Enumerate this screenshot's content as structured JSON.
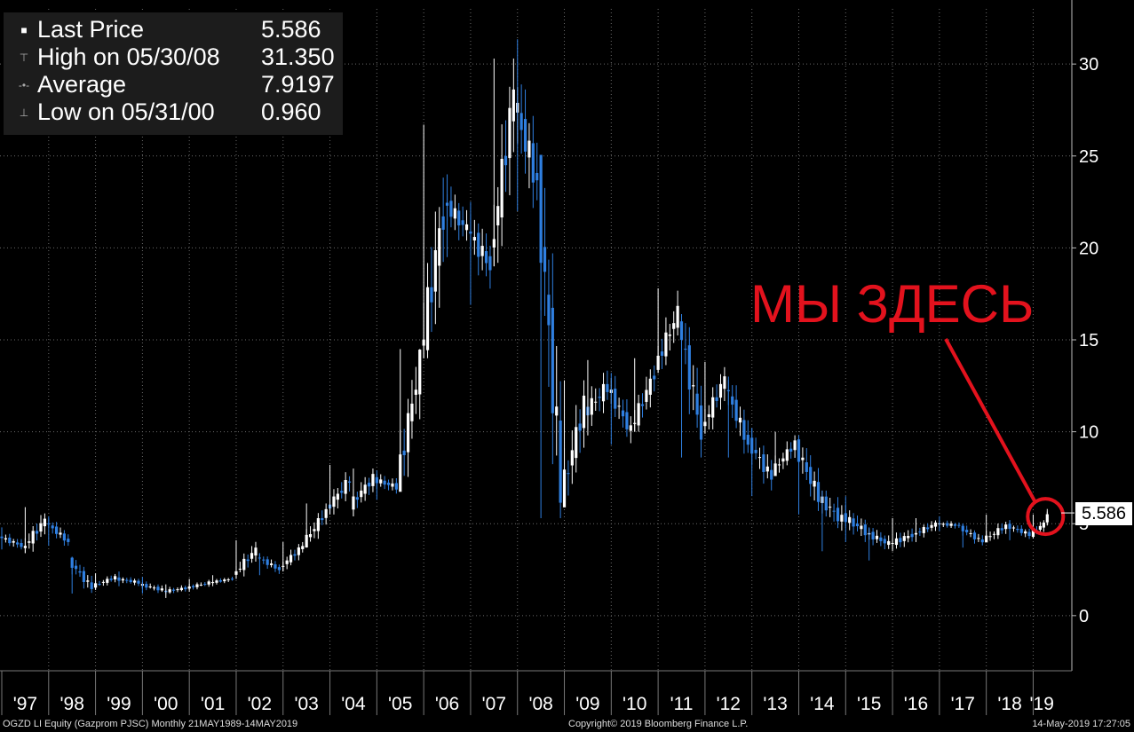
{
  "legend": {
    "last_label": "Last Price",
    "last_value": "5.586",
    "high_label": "High on 05/30/08",
    "high_value": "31.350",
    "avg_label": "Average",
    "avg_value": "7.9197",
    "low_label": "Low on 05/31/00",
    "low_value": "0.960"
  },
  "annotation": {
    "text": "МЫ ЗДЕСЬ",
    "color": "#e3121d"
  },
  "price_tag": "5.586",
  "footer": {
    "left": "OGZD LI Equity  (Gazprom PJSC)   Monthly 21MAY1989-14MAY2019",
    "center": "Copyright© 2019 Bloomberg Finance L.P.",
    "right": "14-May-2019 17:27:05"
  },
  "colors": {
    "up": "#ffffff",
    "down": "#2f7fe0",
    "grid": "#6a6a6a",
    "background": "#000000"
  },
  "chart_data": {
    "type": "candlestick",
    "period": "monthly",
    "ylim": [
      -3,
      33
    ],
    "yticks": [
      0,
      5,
      10,
      15,
      20,
      25,
      30
    ],
    "grid": true,
    "legend_position": "top-left",
    "x_tick_labels": [
      "'97",
      "'98",
      "'99",
      "'00",
      "'01",
      "'02",
      "'03",
      "'04",
      "'05",
      "'06",
      "'07",
      "'08",
      "'09",
      "'10",
      "'11",
      "'12",
      "'13",
      "'14",
      "'15",
      "'16",
      "'17",
      "'18",
      "'19"
    ],
    "x_start_year": 1997,
    "x_end_year": 2019.37,
    "series": [
      {
        "values": [
          {
            "t": 1997.0,
            "o": 4.3,
            "h": 4.8,
            "l": 3.6,
            "c": 3.8
          },
          {
            "t": 1997.5,
            "o": 3.6,
            "h": 5.9,
            "l": 3.4,
            "c": 5.2
          },
          {
            "t": 1998.0,
            "o": 5.1,
            "h": 5.4,
            "l": 3.8,
            "c": 4.0
          },
          {
            "t": 1998.5,
            "o": 3.0,
            "h": 3.2,
            "l": 1.2,
            "c": 1.5
          },
          {
            "t": 1999.0,
            "o": 1.6,
            "h": 2.3,
            "l": 1.4,
            "c": 2.1
          },
          {
            "t": 1999.5,
            "o": 2.0,
            "h": 2.4,
            "l": 1.6,
            "c": 1.8
          },
          {
            "t": 2000.0,
            "o": 1.7,
            "h": 2.1,
            "l": 1.2,
            "c": 1.4
          },
          {
            "t": 2000.5,
            "o": 1.3,
            "h": 1.7,
            "l": 0.96,
            "c": 1.5
          },
          {
            "t": 2001.0,
            "o": 1.5,
            "h": 2.0,
            "l": 1.3,
            "c": 1.8
          },
          {
            "t": 2001.5,
            "o": 1.8,
            "h": 2.2,
            "l": 1.6,
            "c": 2.0
          },
          {
            "t": 2002.0,
            "o": 2.2,
            "h": 4.1,
            "l": 2.0,
            "c": 3.6
          },
          {
            "t": 2002.5,
            "o": 3.2,
            "h": 3.4,
            "l": 2.2,
            "c": 2.5
          },
          {
            "t": 2003.0,
            "o": 2.6,
            "h": 4.0,
            "l": 2.4,
            "c": 3.8
          },
          {
            "t": 2003.5,
            "o": 3.9,
            "h": 6.1,
            "l": 3.7,
            "c": 5.7
          },
          {
            "t": 2004.0,
            "o": 5.8,
            "h": 8.2,
            "l": 5.5,
            "c": 7.4
          },
          {
            "t": 2004.5,
            "o": 6.0,
            "h": 8.0,
            "l": 5.4,
            "c": 7.5
          },
          {
            "t": 2005.0,
            "o": 7.4,
            "h": 7.9,
            "l": 6.3,
            "c": 7.0
          },
          {
            "t": 2005.5,
            "o": 7.2,
            "h": 14.5,
            "l": 7.0,
            "c": 13.8
          },
          {
            "t": 2006.0,
            "o": 14.2,
            "h": 26.7,
            "l": 14.0,
            "c": 22.0
          },
          {
            "t": 2006.5,
            "o": 22.5,
            "h": 24.0,
            "l": 19.5,
            "c": 21.0
          },
          {
            "t": 2007.0,
            "o": 21.0,
            "h": 22.5,
            "l": 16.9,
            "c": 19.0
          },
          {
            "t": 2007.5,
            "o": 19.5,
            "h": 30.3,
            "l": 19.0,
            "c": 28.5
          },
          {
            "t": 2008.0,
            "o": 28.0,
            "h": 31.35,
            "l": 22.0,
            "c": 23.5
          },
          {
            "t": 2008.5,
            "o": 23.5,
            "h": 24.0,
            "l": 5.3,
            "c": 7.0
          },
          {
            "t": 2009.0,
            "o": 6.5,
            "h": 12.8,
            "l": 6.0,
            "c": 11.5
          },
          {
            "t": 2009.5,
            "o": 11.0,
            "h": 13.9,
            "l": 9.8,
            "c": 12.5
          },
          {
            "t": 2010.0,
            "o": 12.4,
            "h": 13.2,
            "l": 9.3,
            "c": 10.0
          },
          {
            "t": 2010.5,
            "o": 10.2,
            "h": 14.0,
            "l": 10.0,
            "c": 13.2
          },
          {
            "t": 2011.0,
            "o": 13.5,
            "h": 17.8,
            "l": 13.2,
            "c": 16.5
          },
          {
            "t": 2011.5,
            "o": 16.0,
            "h": 16.4,
            "l": 8.6,
            "c": 10.0
          },
          {
            "t": 2012.0,
            "o": 10.2,
            "h": 13.8,
            "l": 9.9,
            "c": 12.9
          },
          {
            "t": 2012.5,
            "o": 12.5,
            "h": 13.0,
            "l": 8.6,
            "c": 9.3
          },
          {
            "t": 2013.0,
            "o": 9.4,
            "h": 10.2,
            "l": 6.5,
            "c": 7.5
          },
          {
            "t": 2013.5,
            "o": 7.8,
            "h": 10.0,
            "l": 7.6,
            "c": 9.4
          },
          {
            "t": 2014.0,
            "o": 9.2,
            "h": 9.8,
            "l": 5.5,
            "c": 6.5
          },
          {
            "t": 2014.5,
            "o": 6.4,
            "h": 6.8,
            "l": 3.5,
            "c": 5.2
          },
          {
            "t": 2015.0,
            "o": 5.4,
            "h": 6.5,
            "l": 4.0,
            "c": 4.6
          },
          {
            "t": 2015.5,
            "o": 4.5,
            "h": 4.8,
            "l": 3.0,
            "c": 3.9
          },
          {
            "t": 2016.0,
            "o": 3.9,
            "h": 5.3,
            "l": 3.5,
            "c": 4.4
          },
          {
            "t": 2016.5,
            "o": 4.4,
            "h": 5.3,
            "l": 4.0,
            "c": 5.0
          },
          {
            "t": 2017.0,
            "o": 5.0,
            "h": 5.4,
            "l": 4.6,
            "c": 4.9
          },
          {
            "t": 2017.5,
            "o": 4.8,
            "h": 5.0,
            "l": 3.7,
            "c": 4.0
          },
          {
            "t": 2018.0,
            "o": 4.1,
            "h": 5.5,
            "l": 4.0,
            "c": 4.9
          },
          {
            "t": 2018.5,
            "o": 4.9,
            "h": 5.2,
            "l": 4.1,
            "c": 4.4
          },
          {
            "t": 2019.0,
            "o": 4.4,
            "h": 5.5,
            "l": 4.2,
            "c": 5.0
          },
          {
            "t": 2019.3,
            "o": 5.0,
            "h": 5.8,
            "l": 4.9,
            "c": 5.586
          }
        ]
      }
    ]
  }
}
